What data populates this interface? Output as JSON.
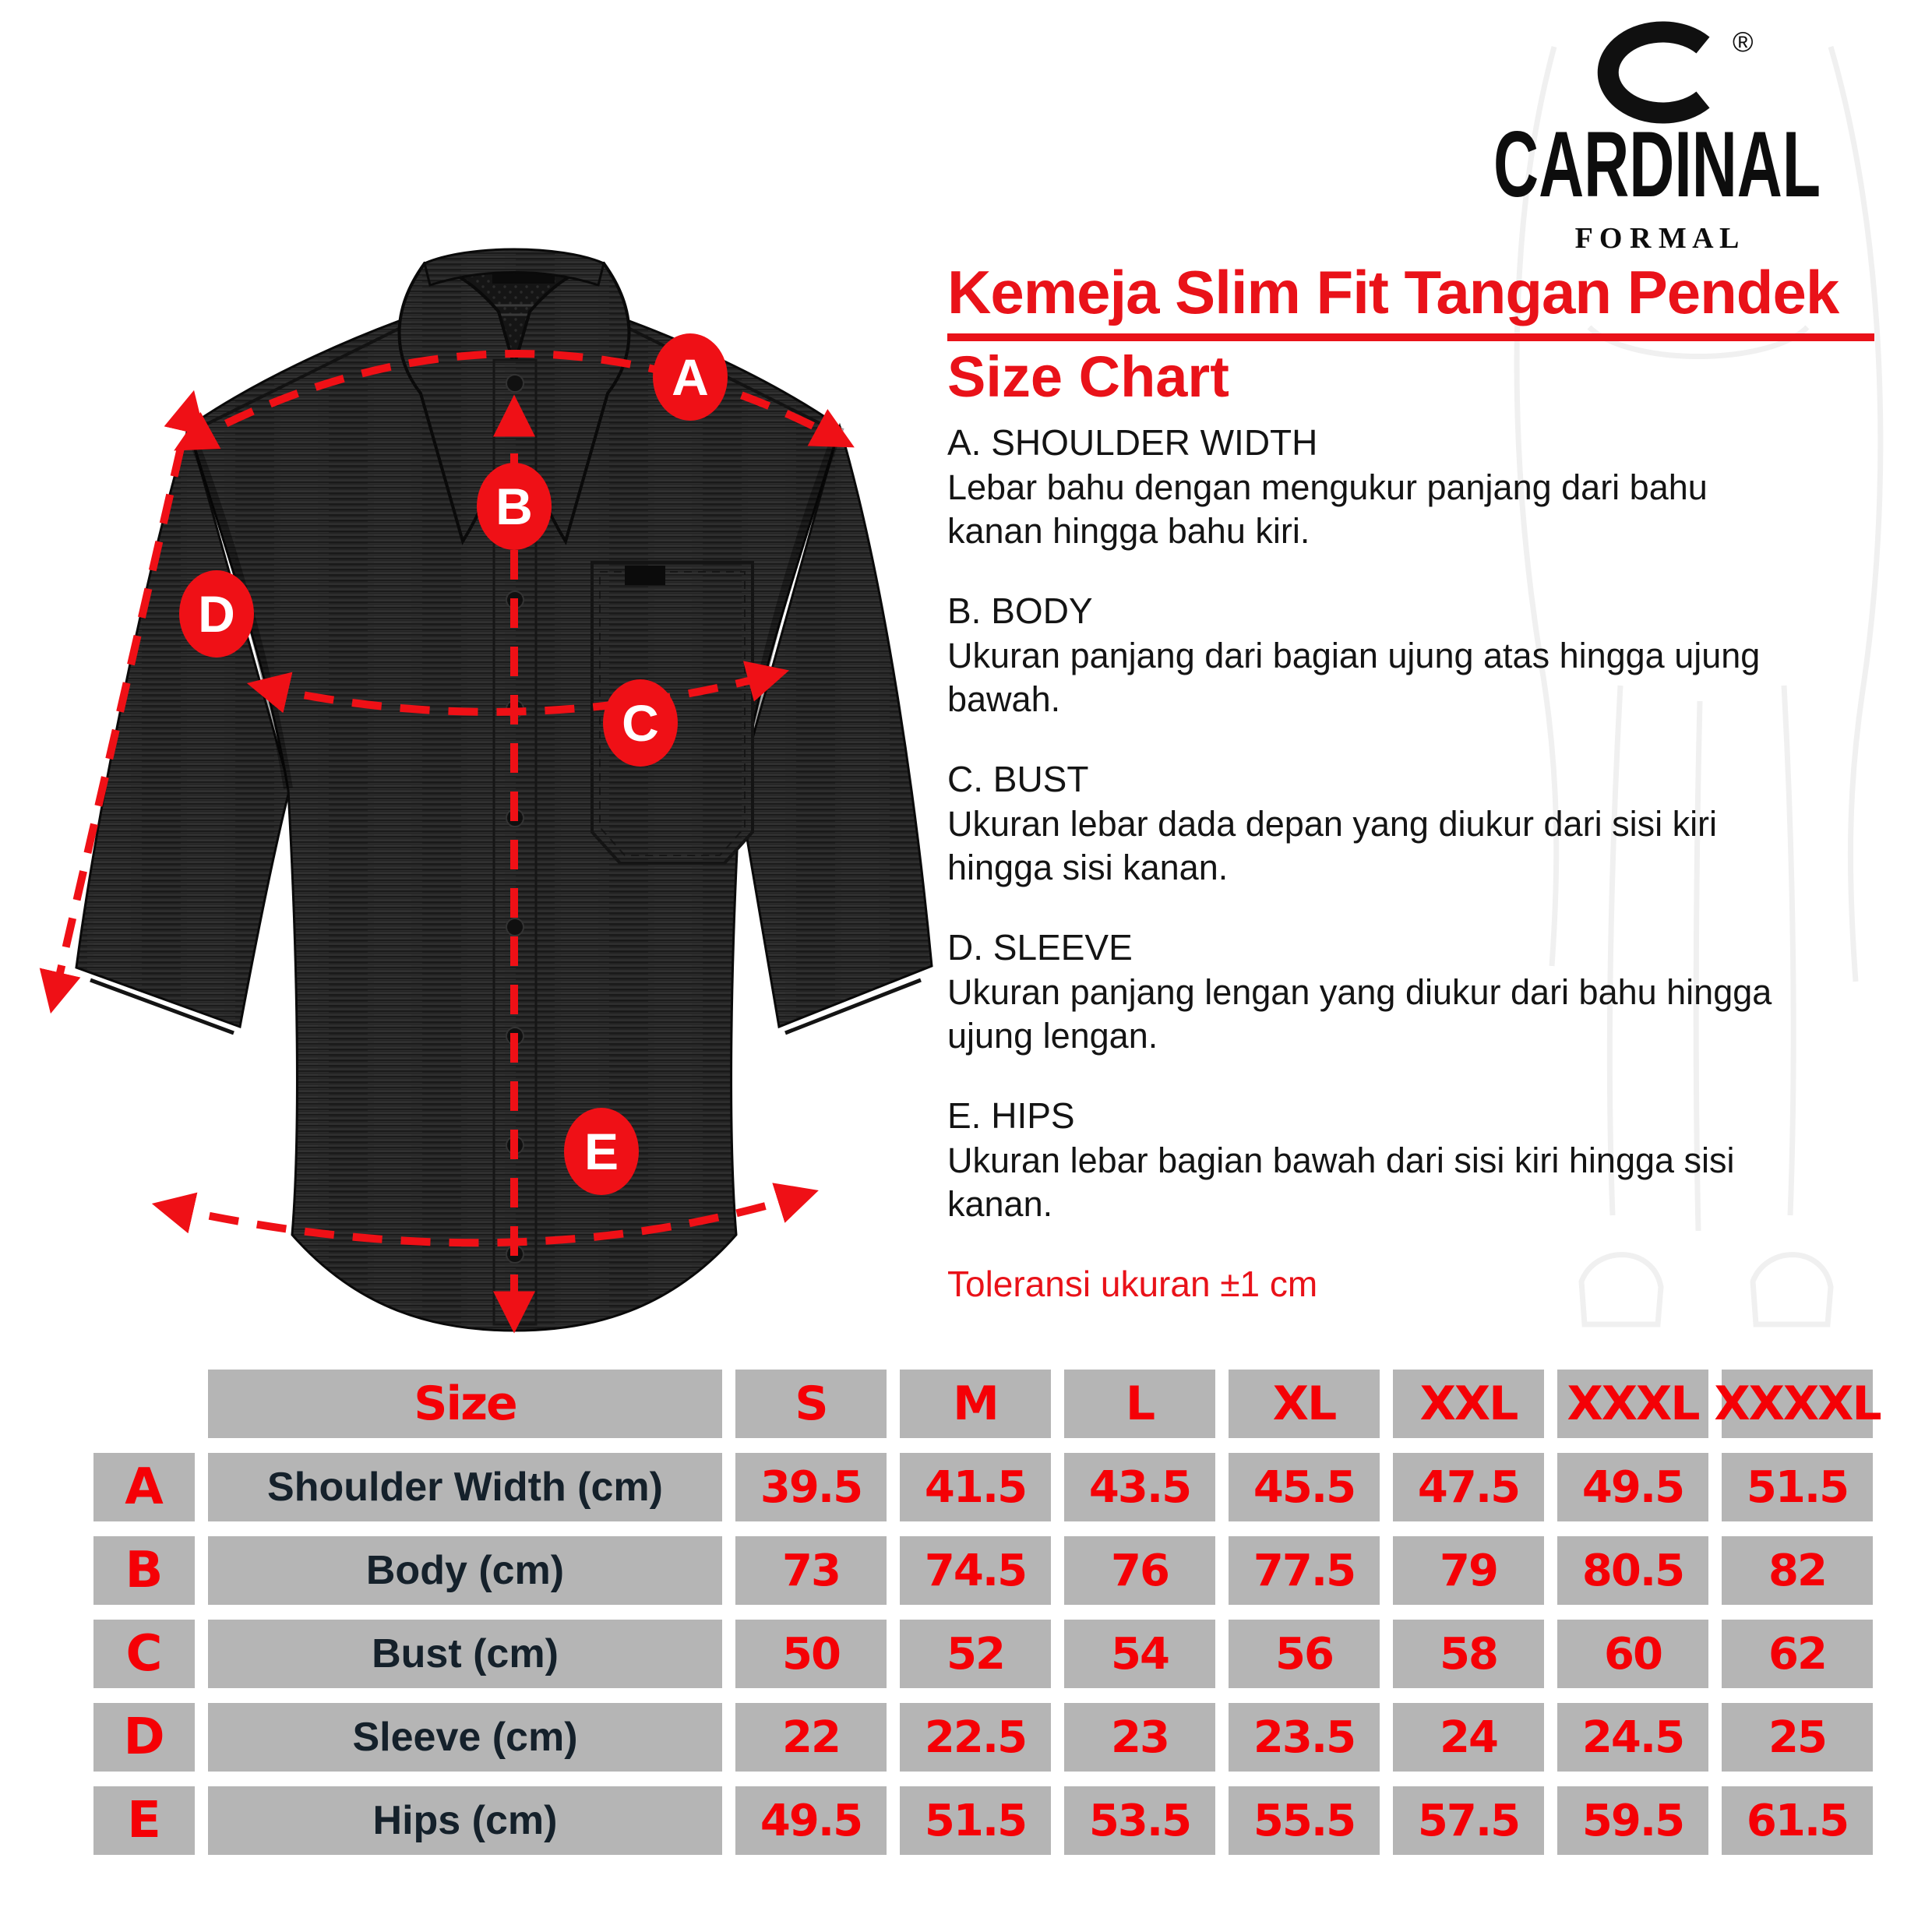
{
  "brand": {
    "name": "CARDINAL",
    "subname": "F O R M A L",
    "registered": "®"
  },
  "header": {
    "title": "Kemeja Slim Fit Tangan Pendek",
    "subtitle": "Size Chart"
  },
  "sections": [
    {
      "heading": "A. SHOULDER WIDTH",
      "description": "Lebar bahu dengan mengukur panjang dari bahu kanan hingga bahu kiri."
    },
    {
      "heading": "B. BODY",
      "description": "Ukuran panjang dari bagian ujung atas hingga ujung bawah."
    },
    {
      "heading": "C. BUST",
      "description": "Ukuran lebar dada depan yang diukur dari sisi kiri hingga sisi kanan."
    },
    {
      "heading": "D. SLEEVE",
      "description": "Ukuran panjang lengan yang diukur dari bahu hingga ujung lengan."
    },
    {
      "heading": "E. HIPS",
      "description": "Ukuran lebar bagian bawah dari sisi kiri hingga sisi kanan."
    }
  ],
  "tolerance_note": "Toleransi ukuran ±1 cm",
  "diagram_markers": [
    "A",
    "B",
    "C",
    "D",
    "E"
  ],
  "chart_data": {
    "type": "table",
    "title": "Size Chart",
    "size_label": "Size",
    "columns": [
      "S",
      "M",
      "L",
      "XL",
      "XXL",
      "XXXL",
      "XXXXL"
    ],
    "rows": [
      {
        "key": "A",
        "label": "Shoulder Width (cm)",
        "values": [
          "39.5",
          "41.5",
          "43.5",
          "45.5",
          "47.5",
          "49.5",
          "51.5"
        ]
      },
      {
        "key": "B",
        "label": "Body (cm)",
        "values": [
          "73",
          "74.5",
          "76",
          "77.5",
          "79",
          "80.5",
          "82"
        ]
      },
      {
        "key": "C",
        "label": "Bust (cm)",
        "values": [
          "50",
          "52",
          "54",
          "56",
          "58",
          "60",
          "62"
        ]
      },
      {
        "key": "D",
        "label": "Sleeve (cm)",
        "values": [
          "22",
          "22.5",
          "23",
          "23.5",
          "24",
          "24.5",
          "25"
        ]
      },
      {
        "key": "E",
        "label": "Hips (cm)",
        "values": [
          "49.5",
          "51.5",
          "53.5",
          "55.5",
          "57.5",
          "59.5",
          "61.5"
        ]
      }
    ]
  },
  "colors": {
    "accent_red": "#e91219",
    "table_red": "#f50006",
    "cell_gray": "#b5b5b5",
    "label_dark": "#15212b",
    "shirt_dark": "#2e2e2e"
  }
}
